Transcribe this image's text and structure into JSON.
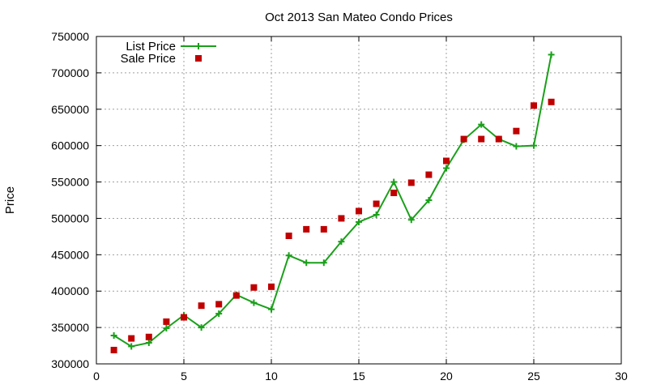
{
  "chart_data": {
    "type": "line",
    "title": "Oct 2013 San Mateo Condo Prices",
    "xlabel": "",
    "ylabel": "Price",
    "xlim": [
      0,
      30
    ],
    "ylim": [
      300000,
      750000
    ],
    "x_ticks": [
      0,
      5,
      10,
      15,
      20,
      25,
      30
    ],
    "y_ticks": [
      300000,
      350000,
      400000,
      450000,
      500000,
      550000,
      600000,
      650000,
      700000,
      750000
    ],
    "grid": true,
    "legend_position": "top-left",
    "x": [
      1,
      2,
      3,
      4,
      5,
      6,
      7,
      8,
      9,
      10,
      11,
      12,
      13,
      14,
      15,
      16,
      17,
      18,
      19,
      20,
      21,
      22,
      23,
      24,
      25,
      26
    ],
    "series": [
      {
        "name": "List Price",
        "style": "line+cross",
        "color": "#1aa01a",
        "values": [
          339000,
          324000,
          329000,
          349000,
          367000,
          350000,
          369000,
          395000,
          384000,
          375000,
          449000,
          439000,
          439000,
          468000,
          495000,
          505000,
          550000,
          498000,
          525000,
          569000,
          608000,
          629000,
          609000,
          599000,
          600000,
          725000
        ]
      },
      {
        "name": "Sale Price",
        "style": "square",
        "color": "#c00000",
        "values": [
          319000,
          335000,
          337000,
          358000,
          364000,
          380000,
          382000,
          394000,
          405000,
          406000,
          476000,
          485000,
          485000,
          500000,
          510000,
          520000,
          535000,
          549000,
          560000,
          579000,
          609000,
          609000,
          609000,
          620000,
          655000,
          660000
        ]
      }
    ]
  }
}
